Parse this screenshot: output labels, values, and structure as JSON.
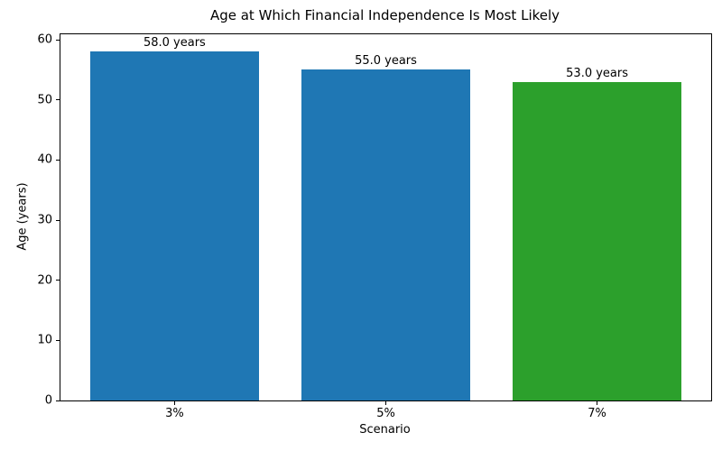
{
  "chart_data": {
    "type": "bar",
    "title": "Age at Which Financial Independence Is Most Likely",
    "xlabel": "Scenario",
    "ylabel": "Age (years)",
    "categories": [
      "3%",
      "5%",
      "7%"
    ],
    "values": [
      58.0,
      55.0,
      53.0
    ],
    "bar_labels": [
      "58.0 years",
      "55.0 years",
      "53.0 years"
    ],
    "bar_colors": [
      "#1f77b4",
      "#1f77b4",
      "#2ca02c"
    ],
    "ylim": [
      0,
      60.9
    ],
    "yticks": [
      0,
      10,
      20,
      30,
      40,
      50,
      60
    ],
    "grid": false,
    "legend_position": "none",
    "spine_color": "#000000",
    "background_color": "#ffffff"
  }
}
